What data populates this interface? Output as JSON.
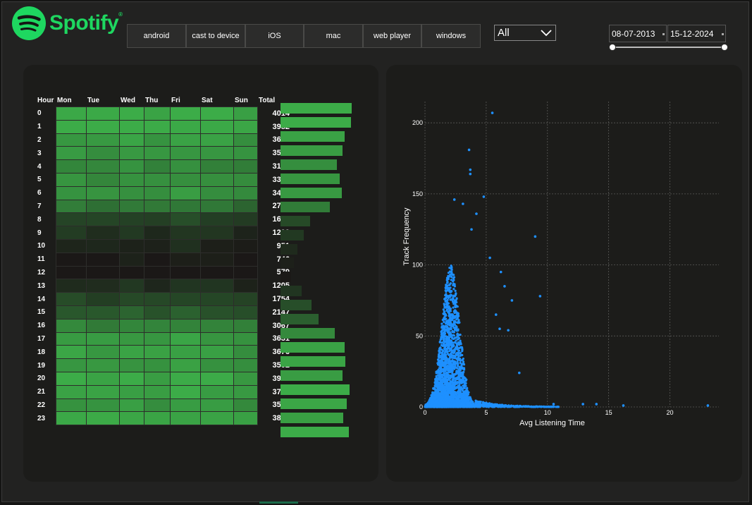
{
  "brand": {
    "name": "Spotify",
    "color": "#1ed760",
    "icon": "spotify-logo-icon"
  },
  "platforms": [
    "android",
    "cast to device",
    "iOS",
    "mac",
    "web player",
    "windows"
  ],
  "filter": {
    "selected": "All"
  },
  "dates": {
    "start": "08-07-2013",
    "end": "15-12-2024"
  },
  "heatmap": {
    "headers": [
      "Hour",
      "Mon",
      "Tue",
      "Wed",
      "Thu",
      "Fri",
      "Sat",
      "Sun",
      "Total"
    ],
    "hours": [
      "0",
      "1",
      "2",
      "3",
      "4",
      "5",
      "6",
      "7",
      "8",
      "9",
      "10",
      "11",
      "12",
      "13",
      "14",
      "15",
      "16",
      "17",
      "18",
      "19",
      "20",
      "21",
      "22",
      "23"
    ],
    "totals": [
      4014,
      3982,
      3617,
      3515,
      3193,
      3335,
      3452,
      2781,
      1666,
      1299,
      951,
      746,
      579,
      1205,
      1754,
      2147,
      3067,
      3631,
      3676,
      3502,
      3904,
      3719,
      3527,
      3837
    ]
  },
  "chart_data": {
    "type": "scatter",
    "xlabel": "Avg Listening Time",
    "ylabel": "Track Frequency",
    "xlim": [
      0,
      24
    ],
    "ylim": [
      0,
      215
    ],
    "xticks": [
      0,
      5,
      10,
      15,
      20
    ],
    "yticks": [
      0,
      50,
      100,
      150,
      200
    ],
    "grid": true,
    "color": "#1e90ff",
    "outliers": [
      {
        "x": 5.5,
        "y": 207
      },
      {
        "x": 3.6,
        "y": 181
      },
      {
        "x": 3.7,
        "y": 167
      },
      {
        "x": 3.7,
        "y": 164
      },
      {
        "x": 2.4,
        "y": 146
      },
      {
        "x": 4.8,
        "y": 148
      },
      {
        "x": 3.1,
        "y": 143
      },
      {
        "x": 4.2,
        "y": 136
      },
      {
        "x": 9.0,
        "y": 120
      },
      {
        "x": 3.8,
        "y": 125
      },
      {
        "x": 5.3,
        "y": 105
      },
      {
        "x": 9.4,
        "y": 78
      },
      {
        "x": 6.2,
        "y": 95
      },
      {
        "x": 6.5,
        "y": 85
      },
      {
        "x": 7.1,
        "y": 75
      },
      {
        "x": 5.8,
        "y": 65
      },
      {
        "x": 6.1,
        "y": 55
      },
      {
        "x": 6.8,
        "y": 54
      },
      {
        "x": 7.7,
        "y": 24
      },
      {
        "x": 12.9,
        "y": 2
      },
      {
        "x": 16.2,
        "y": 1
      },
      {
        "x": 23.1,
        "y": 1
      },
      {
        "x": 10.5,
        "y": 2
      },
      {
        "x": 14.0,
        "y": 2
      }
    ]
  }
}
